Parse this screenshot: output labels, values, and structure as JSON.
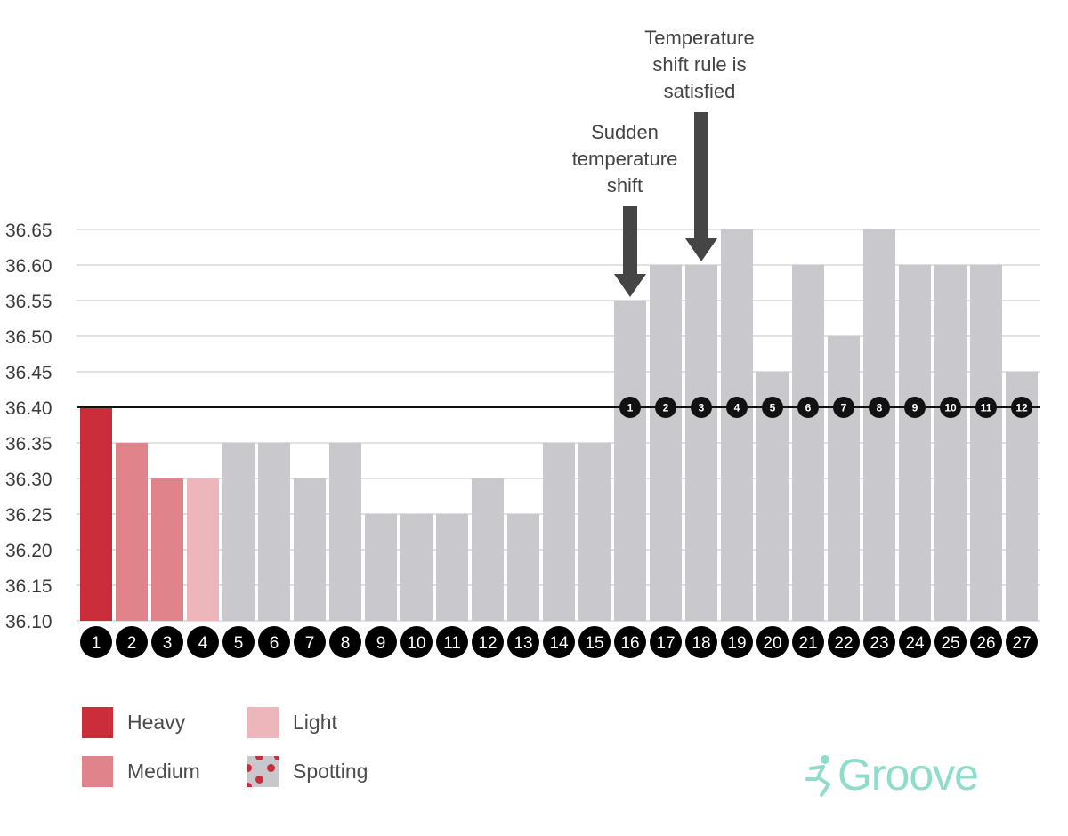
{
  "chart_data": {
    "type": "bar",
    "categories": [
      "1",
      "2",
      "3",
      "4",
      "5",
      "6",
      "7",
      "8",
      "9",
      "10",
      "11",
      "12",
      "13",
      "14",
      "15",
      "16",
      "17",
      "18",
      "19",
      "20",
      "21",
      "22",
      "23",
      "24",
      "25",
      "26",
      "27"
    ],
    "values": [
      36.4,
      36.35,
      36.3,
      36.3,
      36.35,
      36.35,
      36.3,
      36.35,
      36.25,
      36.25,
      36.25,
      36.3,
      36.25,
      36.35,
      36.35,
      36.55,
      36.6,
      36.6,
      36.65,
      36.45,
      36.6,
      36.5,
      36.65,
      36.6,
      36.6,
      36.6,
      36.45
    ],
    "flow": [
      "Heavy",
      "Medium",
      "Medium",
      "Light",
      null,
      null,
      null,
      null,
      null,
      null,
      null,
      null,
      null,
      null,
      null,
      null,
      null,
      null,
      null,
      null,
      null,
      null,
      null,
      null,
      null,
      null,
      null
    ],
    "ylim": [
      36.1,
      36.65
    ],
    "yticks": [
      "36.10",
      "36.15",
      "36.20",
      "36.25",
      "36.30",
      "36.35",
      "36.40",
      "36.45",
      "36.50",
      "36.55",
      "36.60",
      "36.65"
    ],
    "grid": true,
    "reference_line": 36.4,
    "shift_day_labels": [
      "1",
      "2",
      "3",
      "4",
      "5",
      "6",
      "7",
      "8",
      "9",
      "10",
      "11",
      "12"
    ],
    "shift_start_day": 16,
    "annotations": [
      {
        "text": [
          "Sudden",
          "temperature",
          "shift"
        ],
        "day": 16
      },
      {
        "text": [
          "Temperature",
          "shift rule is",
          "satisfied"
        ],
        "day": 18
      }
    ],
    "colors": {
      "Heavy": "#cc2d3b",
      "Medium": "#e0838a",
      "Light": "#edb6bb",
      "default": "#c8c8cd",
      "grid": "#d9d9dc",
      "reference": "#111111",
      "arrow": "#454545"
    }
  },
  "legend": {
    "items": [
      {
        "label": "Heavy",
        "color": "#cc2d3b"
      },
      {
        "label": "Medium",
        "color": "#e0838a"
      },
      {
        "label": "Light",
        "color": "#edb6bb"
      },
      {
        "label": "Spotting",
        "color": "#c8c8cc",
        "dot_color": "#cc2d3b"
      }
    ]
  },
  "brand": {
    "name": "Groove",
    "color": "#8fdccb"
  }
}
